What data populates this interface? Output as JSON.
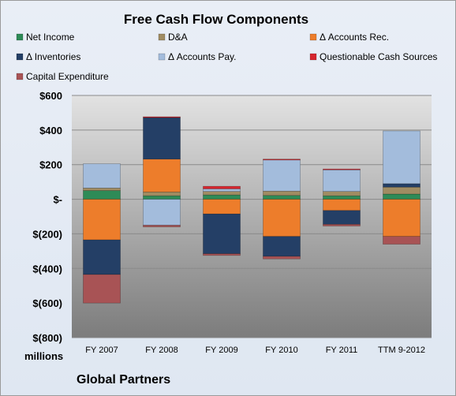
{
  "chart_data": {
    "type": "bar",
    "stacked": true,
    "title": "Free Cash Flow Components",
    "xlabel": "",
    "ylabel": "",
    "units_label": "millions",
    "footer": "Global Partners",
    "ylim": [
      -800,
      600
    ],
    "yticks": [
      600,
      400,
      200,
      0,
      -200,
      -400,
      -600,
      -800
    ],
    "ytick_labels": [
      "$600",
      "$400",
      "$200",
      "$-",
      "$(200)",
      "$(400)",
      "$(600)",
      "$(800)"
    ],
    "categories": [
      "FY 2007",
      "FY 2008",
      "FY 2009",
      "FY 2010",
      "FY 2011",
      "TTM 9-2012"
    ],
    "legend_position": "top",
    "grid": true,
    "series": [
      {
        "name": "Net Income",
        "color": "#2e8b57",
        "values": [
          50,
          20,
          25,
          22,
          20,
          30
        ]
      },
      {
        "name": "D&A",
        "color": "#a08c62",
        "values": [
          15,
          22,
          20,
          25,
          25,
          40
        ]
      },
      {
        "name": "Δ Accounts Rec.",
        "color": "#ed7d2b",
        "values": [
          -235,
          190,
          -85,
          -215,
          -65,
          -215
        ]
      },
      {
        "name": "Δ Inventories",
        "color": "#243f66",
        "values": [
          -200,
          240,
          -230,
          -115,
          -80,
          20
        ]
      },
      {
        "name": "Δ Accounts Pay.",
        "color": "#a3bcdc",
        "values": [
          140,
          -150,
          15,
          180,
          125,
          305
        ]
      },
      {
        "name": "Questionable Cash Sources",
        "color": "#d6262e",
        "values": [
          0,
          5,
          15,
          5,
          5,
          0
        ]
      },
      {
        "name": "Capital Expenditure",
        "color": "#a85355",
        "values": [
          -165,
          -10,
          -10,
          -15,
          -10,
          -45
        ]
      }
    ]
  }
}
